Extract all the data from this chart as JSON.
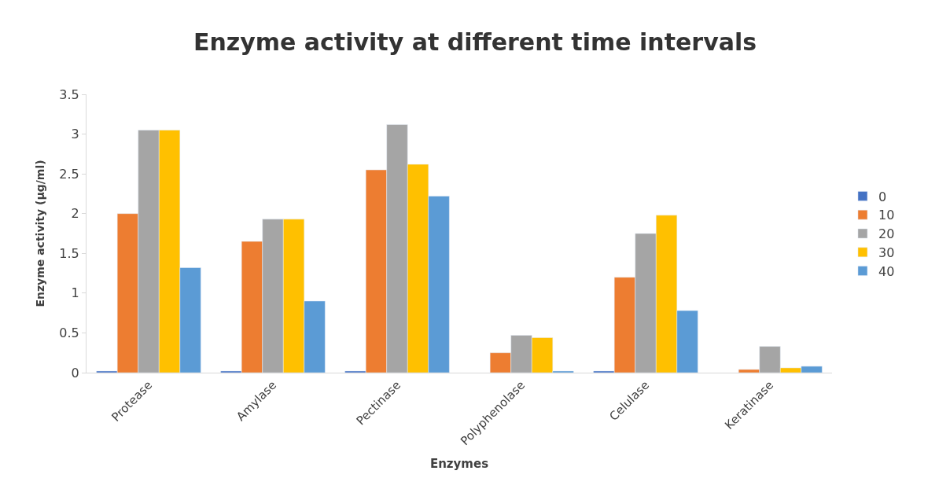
{
  "chart_data": {
    "type": "bar",
    "title": "Enzyme activity at different time intervals",
    "xlabel": "Enzymes",
    "ylabel": "Enzyme activity (µg/ml)",
    "categories": [
      "Protease",
      "Amylase",
      "Pectinase",
      "Polyphenolase",
      "Celulase",
      "Keratinase"
    ],
    "series": [
      {
        "name": "0",
        "color": "#4472c4",
        "values": [
          0.02,
          0.02,
          0.02,
          null,
          0.02,
          null
        ]
      },
      {
        "name": "10",
        "color": "#ed7d31",
        "values": [
          2.0,
          1.65,
          2.55,
          0.25,
          1.2,
          0.04
        ]
      },
      {
        "name": "20",
        "color": "#a5a5a5",
        "values": [
          3.05,
          1.93,
          3.12,
          0.47,
          1.75,
          0.33
        ]
      },
      {
        "name": "30",
        "color": "#ffc000",
        "values": [
          3.05,
          1.93,
          2.62,
          0.44,
          1.98,
          0.06
        ]
      },
      {
        "name": "40",
        "color": "#5b9bd5",
        "values": [
          1.32,
          0.9,
          2.22,
          0.02,
          0.78,
          0.08
        ]
      }
    ],
    "ylim": [
      0,
      3.5
    ],
    "yticks": [
      0,
      0.5,
      1,
      1.5,
      2,
      2.5,
      3,
      3.5
    ],
    "grid": false,
    "legend": "right"
  }
}
